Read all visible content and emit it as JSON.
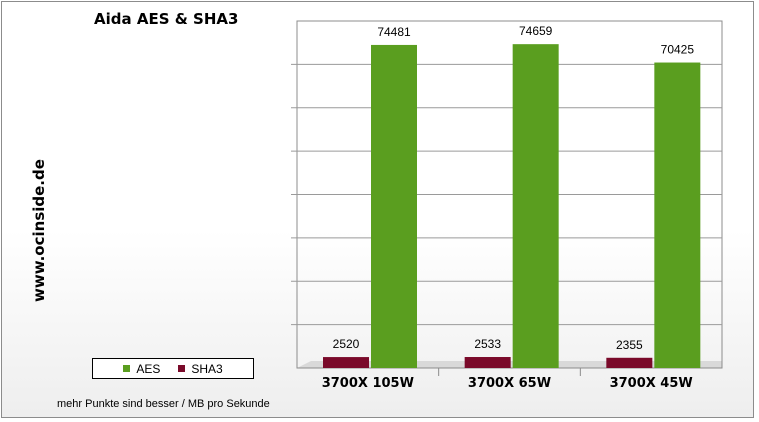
{
  "watermark": "www.ocinside.de",
  "footnote": "mehr Punkte sind besser / MB pro Sekunde",
  "colors": {
    "AES": "#5a9e1f",
    "SHA3": "#7a0a2a"
  },
  "chart_data": {
    "type": "bar",
    "title": "Aida AES & SHA3",
    "xlabel": "",
    "ylabel": "",
    "categories": [
      "3700X 105W",
      "3700X 65W",
      "3700X 45W"
    ],
    "series": [
      {
        "name": "SHA3",
        "values": [
          2520,
          2533,
          2355
        ]
      },
      {
        "name": "AES",
        "values": [
          74481,
          74659,
          70425
        ]
      }
    ],
    "ylim": [
      0,
      80000
    ],
    "grid": true,
    "legend": "bottom-left",
    "data_labels": true
  }
}
